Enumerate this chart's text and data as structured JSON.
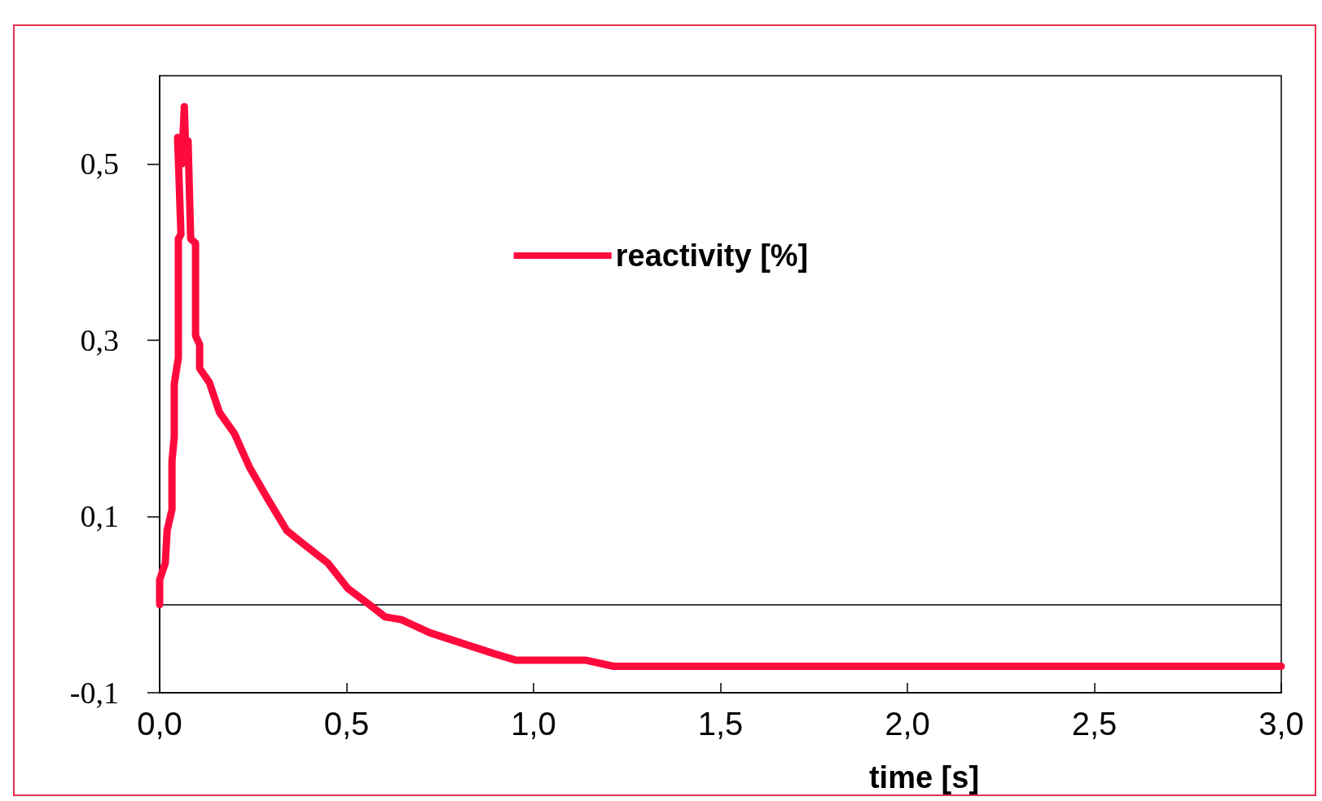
{
  "chart_data": {
    "type": "line",
    "xlabel": "time [s]",
    "x": [
      0,
      0,
      0.015,
      0.02,
      0.033,
      0.033,
      0.039,
      0.039,
      0.05,
      0.05,
      0.057,
      0.048,
      0.059,
      0.066,
      0.07,
      0.076,
      0.083,
      0.096,
      0.096,
      0.107,
      0.107,
      0.133,
      0.16,
      0.2,
      0.24,
      0.286,
      0.34,
      0.384,
      0.45,
      0.504,
      0.57,
      0.603,
      0.646,
      0.723,
      0.897,
      0.952,
      1.138,
      1.214,
      3.0
    ],
    "series": [
      {
        "name": "reactivity [%]",
        "color": "#ff0a3c",
        "values": [
          0,
          0.028,
          0.047,
          0.084,
          0.108,
          0.163,
          0.19,
          0.25,
          0.28,
          0.415,
          0.42,
          0.53,
          0.5,
          0.565,
          0.51,
          0.526,
          0.415,
          0.41,
          0.305,
          0.295,
          0.268,
          0.252,
          0.218,
          0.194,
          0.156,
          0.122,
          0.084,
          0.069,
          0.047,
          0.018,
          -0.003,
          -0.014,
          -0.017,
          -0.032,
          -0.056,
          -0.063,
          -0.063,
          -0.07,
          -0.07
        ]
      }
    ],
    "xlim": [
      0,
      3
    ],
    "ylim": [
      -0.1,
      0.6
    ],
    "xticks": [
      {
        "value": 0,
        "label": "0,0"
      },
      {
        "value": 0.5,
        "label": "0,5"
      },
      {
        "value": 1,
        "label": "1,0"
      },
      {
        "value": 1.5,
        "label": "1,5"
      },
      {
        "value": 2,
        "label": "2,0"
      },
      {
        "value": 2.5,
        "label": "2,5"
      },
      {
        "value": 3,
        "label": "3,0"
      }
    ],
    "yticks": [
      {
        "value": -0.1,
        "label": "-0,1"
      },
      {
        "value": 0.1,
        "label": "0,1"
      },
      {
        "value": 0.3,
        "label": "0,3"
      },
      {
        "value": 0.5,
        "label": "0,5"
      }
    ],
    "ref_lines": [
      {
        "axis": "y",
        "value": 0,
        "color": "#000000"
      }
    ],
    "grid": false,
    "legend": "top",
    "line_style": "solid"
  }
}
